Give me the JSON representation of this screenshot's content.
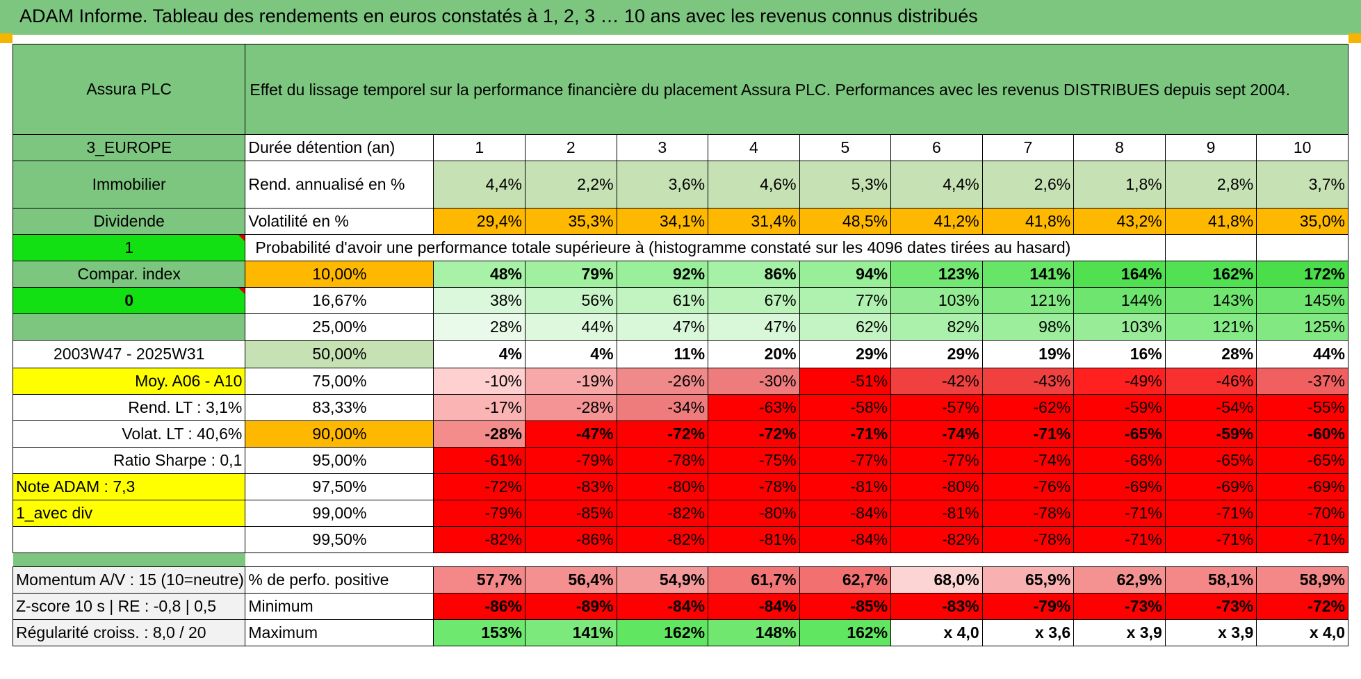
{
  "header": {
    "title": "ADAM Informe. Tableau des rendements en euros constatés à 1, 2, 3 … 10 ans avec les revenus connus distribués"
  },
  "left": {
    "fund_name": "Assura PLC",
    "region": "3_EUROPE",
    "sector": "Immobilier",
    "income_type": "Dividende",
    "flag1": "1",
    "compar_index": "Compar. index",
    "flag0": "0",
    "period": "2003W47 - 2025W31",
    "moy": "Moy. A06 - A10",
    "rend_lt": "Rend. LT :   3,1%",
    "volat_lt": "Volat. LT :   40,6%",
    "sharpe": "Ratio Sharpe :    0,1",
    "note": "Note ADAM : 7,3",
    "div_mode": "1_avec div",
    "momentum": "Momentum A/V : 15 (10=neutre)",
    "zscore": "Z-score 10 s | RE : -0,8 | 0,5",
    "regularite": "Régularité croiss. : 8,0 / 20"
  },
  "description": "Effet du lissage temporel sur la performance financière du placement Assura PLC. Performances avec les revenus DISTRIBUES depuis sept 2004.",
  "duration_label": "Durée détention (an)",
  "years": [
    "1",
    "2",
    "3",
    "4",
    "5",
    "6",
    "7",
    "8",
    "9",
    "10"
  ],
  "rend": {
    "label": "Rend. annualisé en %",
    "values": [
      "4,4%",
      "2,2%",
      "3,6%",
      "4,6%",
      "5,3%",
      "4,4%",
      "2,6%",
      "1,8%",
      "2,8%",
      "3,7%"
    ]
  },
  "vol": {
    "label": "Volatilité en %",
    "values": [
      "29,4%",
      "35,3%",
      "34,1%",
      "31,4%",
      "48,5%",
      "41,2%",
      "41,8%",
      "43,2%",
      "41,8%",
      "35,0%"
    ]
  },
  "prob_header": "Probabilité d'avoir une performance totale supérieure à (histogramme constaté sur les 4096 dates tirées au hasard)",
  "quantiles": [
    {
      "q": "10,00%",
      "values": [
        "48%",
        "79%",
        "92%",
        "86%",
        "94%",
        "123%",
        "141%",
        "164%",
        "162%",
        "172%"
      ]
    },
    {
      "q": "16,67%",
      "values": [
        "38%",
        "56%",
        "61%",
        "67%",
        "77%",
        "103%",
        "121%",
        "144%",
        "143%",
        "145%"
      ]
    },
    {
      "q": "25,00%",
      "values": [
        "28%",
        "44%",
        "47%",
        "47%",
        "62%",
        "82%",
        "98%",
        "103%",
        "121%",
        "125%"
      ]
    },
    {
      "q": "50,00%",
      "values": [
        "4%",
        "4%",
        "11%",
        "20%",
        "29%",
        "29%",
        "19%",
        "16%",
        "28%",
        "44%"
      ]
    },
    {
      "q": "75,00%",
      "values": [
        "-10%",
        "-19%",
        "-26%",
        "-30%",
        "-51%",
        "-42%",
        "-43%",
        "-49%",
        "-46%",
        "-37%"
      ]
    },
    {
      "q": "83,33%",
      "values": [
        "-17%",
        "-28%",
        "-34%",
        "-63%",
        "-58%",
        "-57%",
        "-62%",
        "-59%",
        "-54%",
        "-55%"
      ]
    },
    {
      "q": "90,00%",
      "values": [
        "-28%",
        "-47%",
        "-72%",
        "-72%",
        "-71%",
        "-74%",
        "-71%",
        "-65%",
        "-59%",
        "-60%"
      ]
    },
    {
      "q": "95,00%",
      "values": [
        "-61%",
        "-79%",
        "-78%",
        "-75%",
        "-77%",
        "-77%",
        "-74%",
        "-68%",
        "-65%",
        "-65%"
      ]
    },
    {
      "q": "97,50%",
      "values": [
        "-72%",
        "-83%",
        "-80%",
        "-78%",
        "-81%",
        "-80%",
        "-76%",
        "-69%",
        "-69%",
        "-69%"
      ]
    },
    {
      "q": "99,00%",
      "values": [
        "-79%",
        "-85%",
        "-82%",
        "-80%",
        "-84%",
        "-81%",
        "-78%",
        "-71%",
        "-71%",
        "-70%"
      ]
    },
    {
      "q": "99,50%",
      "values": [
        "-82%",
        "-86%",
        "-82%",
        "-81%",
        "-84%",
        "-82%",
        "-78%",
        "-71%",
        "-71%",
        "-71%"
      ]
    }
  ],
  "pos": {
    "label": "% de perfo. positive",
    "values": [
      "57,7%",
      "56,4%",
      "54,9%",
      "61,7%",
      "62,7%",
      "68,0%",
      "65,9%",
      "62,9%",
      "58,1%",
      "58,9%"
    ]
  },
  "min": {
    "label": "Minimum",
    "values": [
      "-86%",
      "-89%",
      "-84%",
      "-84%",
      "-85%",
      "-83%",
      "-79%",
      "-73%",
      "-73%",
      "-72%"
    ]
  },
  "max": {
    "label": "Maximum",
    "values": [
      "153%",
      "141%",
      "162%",
      "148%",
      "162%",
      "x 4,0",
      "x 3,6",
      "x 3,9",
      "x 3,9",
      "x 4,0"
    ]
  },
  "colors": {
    "header_green": "#7dc67f",
    "light_green": "#c6e1b4",
    "orange": "#ffb800",
    "bright_green": "#12e012",
    "yellow": "#ffff00",
    "red_text": "#e00000",
    "quantile_fills": [
      [
        "#a8f2a8",
        "#a0f0a0",
        "#9af09a",
        "#a5f1a5",
        "#98ef98",
        "#72e872",
        "#66e566",
        "#50e050",
        "#52e152",
        "#4ade4a"
      ],
      [
        "#dcf8dc",
        "#c8f5c8",
        "#c1f4c1",
        "#bbf3bb",
        "#aff1af",
        "#93ec93",
        "#83ea83",
        "#6ee56e",
        "#70e570",
        "#6ee56e"
      ],
      [
        "#eafaea",
        "#ddf8dd",
        "#d9f7d9",
        "#d9f7d9",
        "#c4f4c4",
        "#abf0ab",
        "#9ced9c",
        "#98ec98",
        "#86ea86",
        "#82e982"
      ],
      [
        "#ffffff",
        "#ffffff",
        "#ffffff",
        "#ffffff",
        "#ffffff",
        "#ffffff",
        "#ffffff",
        "#ffffff",
        "#ffffff",
        "#ffffff"
      ],
      [
        "#ffd0d0",
        "#f7a8a8",
        "#f08a8a",
        "#ee7c7c",
        "#ff0000",
        "#f04040",
        "#f04040",
        "#ff2020",
        "#f83030",
        "#f06060"
      ],
      [
        "#fbb4b4",
        "#f49494",
        "#ef7c7c",
        "#ff0000",
        "#ff0000",
        "#ff0000",
        "#ff0000",
        "#ff0000",
        "#ff0000",
        "#ff0000"
      ],
      [
        "#f48c8c",
        "#ff0000",
        "#ff0000",
        "#ff0000",
        "#ff0000",
        "#ff0000",
        "#ff0000",
        "#ff0000",
        "#ff0000",
        "#ff0000"
      ],
      [
        "#ff0000",
        "#ff0000",
        "#ff0000",
        "#ff0000",
        "#ff0000",
        "#ff0000",
        "#ff0000",
        "#ff0000",
        "#ff0000",
        "#ff0000"
      ],
      [
        "#ff0000",
        "#ff0000",
        "#ff0000",
        "#ff0000",
        "#ff0000",
        "#ff0000",
        "#ff0000",
        "#ff0000",
        "#ff0000",
        "#ff0000"
      ],
      [
        "#ff0000",
        "#ff0000",
        "#ff0000",
        "#ff0000",
        "#ff0000",
        "#ff0000",
        "#ff0000",
        "#ff0000",
        "#ff0000",
        "#ff0000"
      ],
      [
        "#ff0000",
        "#ff0000",
        "#ff0000",
        "#ff0000",
        "#ff0000",
        "#ff0000",
        "#ff0000",
        "#ff0000",
        "#ff0000",
        "#ff0000"
      ]
    ],
    "pos_fills": [
      "#f48888",
      "#f49090",
      "#f49a9a",
      "#f27676",
      "#f27070",
      "#fcd4d4",
      "#f8b0b0",
      "#f49292",
      "#f48888",
      "#f48888"
    ],
    "min_fills": [
      "#ff0000",
      "#ff0000",
      "#ff0000",
      "#ff0000",
      "#ff0000",
      "#ff0000",
      "#ff0000",
      "#ff0000",
      "#ff0000",
      "#ff0000"
    ],
    "max_fills": [
      "#6ee86e",
      "#7ce97c",
      "#60e660",
      "#70e870",
      "#60e660",
      "#ffffff",
      "#ffffff",
      "#ffffff",
      "#ffffff",
      "#ffffff"
    ],
    "rend_fills": [
      "#c6e1b4",
      "#c6e1b4",
      "#c6e1b4",
      "#c6e1b4",
      "#c6e1b4",
      "#c6e1b4",
      "#c6e1b4",
      "#c6e1b4",
      "#c6e1b4",
      "#c6e1b4"
    ],
    "vol_fills": [
      "#ffb800",
      "#ffb800",
      "#ffb800",
      "#ffb800",
      "#ffb800",
      "#ffb800",
      "#ffb800",
      "#ffb800",
      "#ffb800",
      "#ffb800"
    ]
  }
}
